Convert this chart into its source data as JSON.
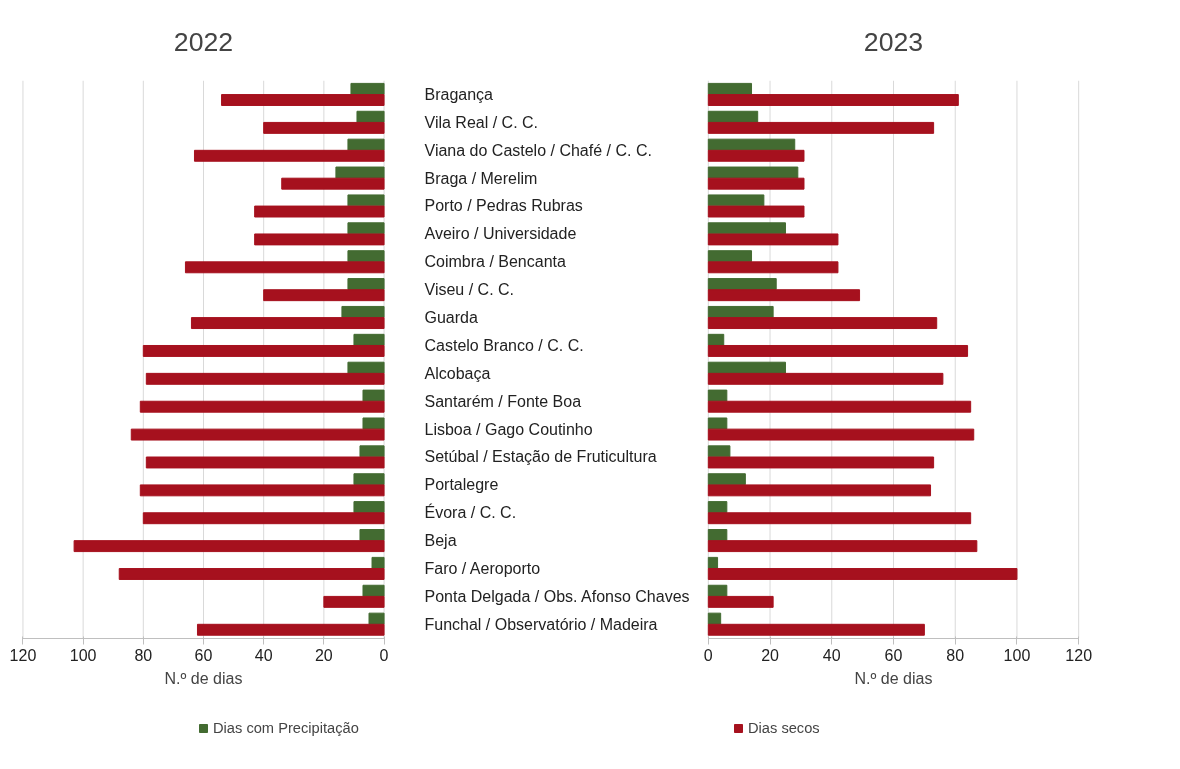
{
  "chart_data": [
    {
      "type": "bar",
      "orientation": "horizontal",
      "title": "2022",
      "xlabel": "N.º de dias",
      "categories": [
        "Bragança",
        "Vila Real / C. C.",
        "Viana do Castelo / Chafé / C. C.",
        "Braga / Merelim",
        "Porto / Pedras Rubras",
        "Aveiro / Universidade",
        "Coimbra / Bencanta",
        "Viseu / C. C.",
        "Guarda",
        "Castelo Branco / C. C.",
        "Alcobaça",
        "Santarém / Fonte Boa",
        "Lisboa / Gago Coutinho",
        "Setúbal / Estação de Fruticultura",
        "Portalegre",
        "Évora / C. C.",
        "Beja",
        "Faro / Aeroporto",
        "Ponta Delgada / Obs. Afonso Chaves",
        "Funchal / Observatório / Madeira"
      ],
      "series": [
        {
          "name": "Dias com Precipitação",
          "color": "#436b31",
          "values": [
            11,
            9,
            12,
            16,
            12,
            12,
            12,
            12,
            14,
            10,
            12,
            7,
            7,
            8,
            10,
            10,
            8,
            4,
            7,
            5
          ]
        },
        {
          "color": "#a6111e",
          "values": [
            54,
            40,
            63,
            34,
            43,
            43,
            66,
            40,
            64,
            80,
            79,
            81,
            84,
            79,
            81,
            80,
            103,
            88,
            20,
            62
          ]
        }
      ],
      "xlim": [
        120,
        0
      ],
      "xticks": [
        120,
        100,
        80,
        60,
        40,
        20,
        0
      ],
      "grid": "x",
      "legend": "bottom"
    },
    {
      "type": "bar",
      "orientation": "horizontal",
      "title": "2023",
      "xlabel": "N.º de dias",
      "categories": [
        null,
        null,
        null,
        null,
        null,
        null,
        null,
        null,
        null,
        null,
        null,
        null,
        null,
        null,
        null,
        null,
        null,
        null,
        null,
        null
      ],
      "series": [
        {
          "color": "#436b31",
          "values": [
            14,
            16,
            28,
            29,
            18,
            25,
            14,
            22,
            21,
            5,
            25,
            6,
            6,
            7,
            12,
            6,
            6,
            3,
            6,
            4
          ]
        },
        {
          "name": "Dias secos",
          "color": "#a6111e",
          "values": [
            81,
            73,
            31,
            31,
            31,
            42,
            42,
            49,
            74,
            84,
            76,
            85,
            86,
            73,
            72,
            85,
            87,
            100,
            21,
            70
          ]
        }
      ],
      "xlim": [
        0,
        120
      ],
      "xticks": [
        0,
        20,
        40,
        60,
        80,
        100,
        120
      ],
      "grid": "x",
      "legend": "bottom",
      "tick_labels": "x"
    }
  ]
}
